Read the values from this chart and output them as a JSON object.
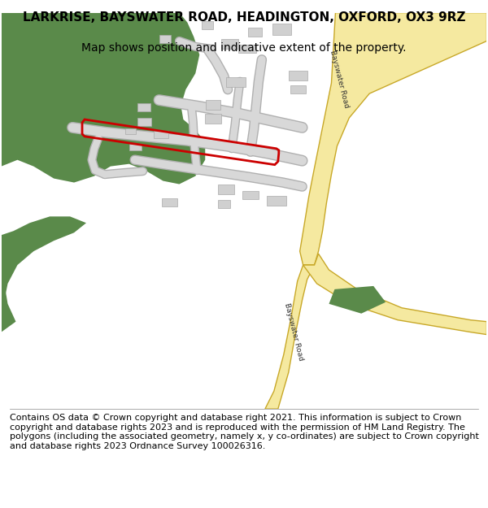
{
  "title": "LARKRISE, BAYSWATER ROAD, HEADINGTON, OXFORD, OX3 9RZ",
  "subtitle": "Map shows position and indicative extent of the property.",
  "footer": "Contains OS data © Crown copyright and database right 2021. This information is subject to Crown copyright and database rights 2023 and is reproduced with the permission of HM Land Registry. The polygons (including the associated geometry, namely x, y co-ordinates) are subject to Crown copyright and database rights 2023 Ordnance Survey 100026316.",
  "bg_color": "#ffffff",
  "road_color_main": "#f5e9a0",
  "road_border_color": "#c8a828",
  "green_color": "#5a8a4a",
  "red_outline_color": "#cc0000",
  "gray_building": "#d0d0d0",
  "gray_road": "#d8d8d8",
  "gray_road_border": "#b0b0b0",
  "title_fontsize": 11,
  "subtitle_fontsize": 10,
  "footer_fontsize": 8
}
